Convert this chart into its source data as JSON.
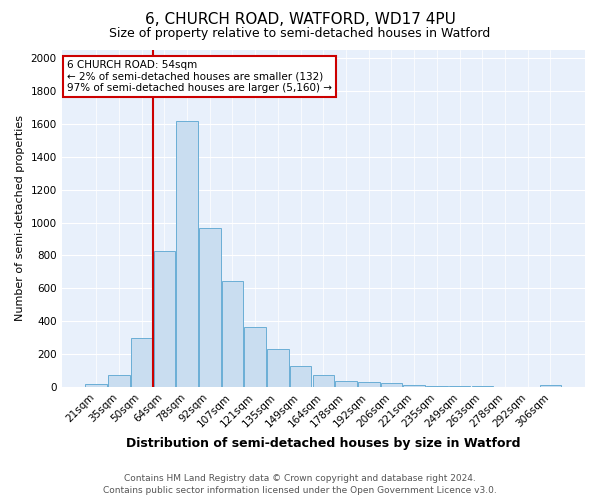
{
  "title": "6, CHURCH ROAD, WATFORD, WD17 4PU",
  "subtitle": "Size of property relative to semi-detached houses in Watford",
  "xlabel": "Distribution of semi-detached houses by size in Watford",
  "ylabel": "Number of semi-detached properties",
  "bin_labels": [
    "21sqm",
    "35sqm",
    "50sqm",
    "64sqm",
    "78sqm",
    "92sqm",
    "107sqm",
    "121sqm",
    "135sqm",
    "149sqm",
    "164sqm",
    "178sqm",
    "192sqm",
    "206sqm",
    "221sqm",
    "235sqm",
    "249sqm",
    "263sqm",
    "278sqm",
    "292sqm",
    "306sqm"
  ],
  "bar_heights": [
    20,
    75,
    300,
    830,
    1620,
    970,
    645,
    365,
    230,
    130,
    75,
    35,
    30,
    25,
    12,
    8,
    4,
    3,
    2,
    0,
    12
  ],
  "bar_color": "#c9ddf0",
  "bar_edge_color": "#6aaed6",
  "background_color": "#e8f0fb",
  "grid_color": "#ffffff",
  "red_line_x": 2.5,
  "annotation_title": "6 CHURCH ROAD: 54sqm",
  "annotation_line1": "← 2% of semi-detached houses are smaller (132)",
  "annotation_line2": "97% of semi-detached houses are larger (5,160) →",
  "annotation_box_color": "#ffffff",
  "annotation_box_edge": "#cc0000",
  "footer_line1": "Contains HM Land Registry data © Crown copyright and database right 2024.",
  "footer_line2": "Contains public sector information licensed under the Open Government Licence v3.0.",
  "ylim": [
    0,
    2050
  ],
  "yticks": [
    0,
    200,
    400,
    600,
    800,
    1000,
    1200,
    1400,
    1600,
    1800,
    2000
  ],
  "fig_facecolor": "#ffffff",
  "title_fontsize": 11,
  "subtitle_fontsize": 9,
  "xlabel_fontsize": 9,
  "ylabel_fontsize": 8,
  "tick_fontsize": 7.5,
  "footer_fontsize": 6.5
}
